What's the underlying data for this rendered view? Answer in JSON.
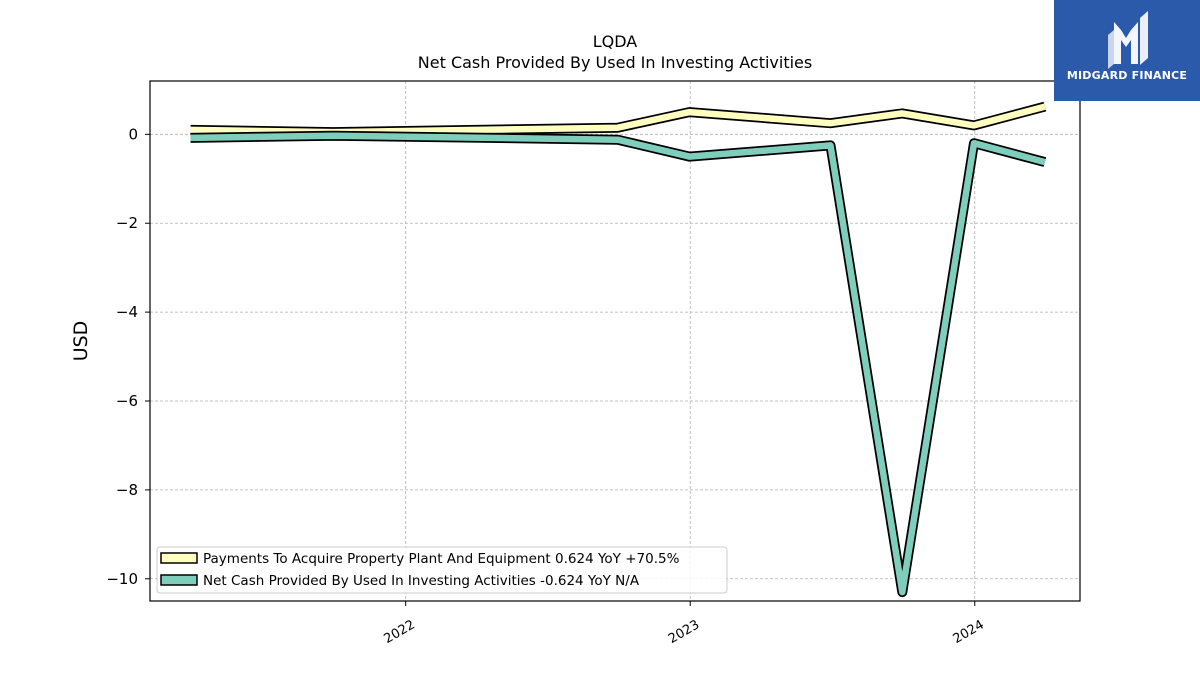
{
  "chart_data": {
    "type": "line",
    "title": "LQDA",
    "subtitle": "Net Cash Provided By Used In Investing Activities",
    "ylabel": "USD",
    "xlabel": "",
    "ylim": [
      -10.5,
      1.2
    ],
    "xlim": [
      "2021-02-07",
      "2024-05-15"
    ],
    "grid": true,
    "legend_position": "lower-left",
    "yticks": [
      0,
      -2,
      -4,
      -6,
      -8,
      -10
    ],
    "ytick_labels": [
      "0",
      "−2",
      "−4",
      "−6",
      "−8",
      "−10"
    ],
    "xticks": [
      "2022-01-01",
      "2023-01-01",
      "2024-01-01"
    ],
    "xtick_labels": [
      "2022",
      "2023",
      "2024"
    ],
    "x": [
      "2021-03-31",
      "2021-09-30",
      "2022-09-30",
      "2022-12-31",
      "2023-06-30",
      "2023-09-30",
      "2023-12-31",
      "2024-03-31"
    ],
    "series": [
      {
        "name": "Payments To Acquire Property Plant And Equipment",
        "legend_label": "Payments To Acquire Property Plant And Equipment  0.624 YoY +70.5%",
        "color": "#ffffbf",
        "values": [
          0.1,
          0.05,
          0.15,
          0.5,
          0.25,
          0.47,
          0.2,
          0.624
        ]
      },
      {
        "name": "Net Cash Provided By Used In Investing Activities",
        "legend_label": "Net Cash Provided By Used In Investing Activities  -0.624 YoY N/A",
        "color": "#7fcdbb",
        "values": [
          -0.08,
          -0.03,
          -0.12,
          -0.5,
          -0.25,
          -10.3,
          -0.2,
          -0.624
        ]
      }
    ]
  },
  "logo": {
    "text": "MIDGARD FINANCE"
  }
}
